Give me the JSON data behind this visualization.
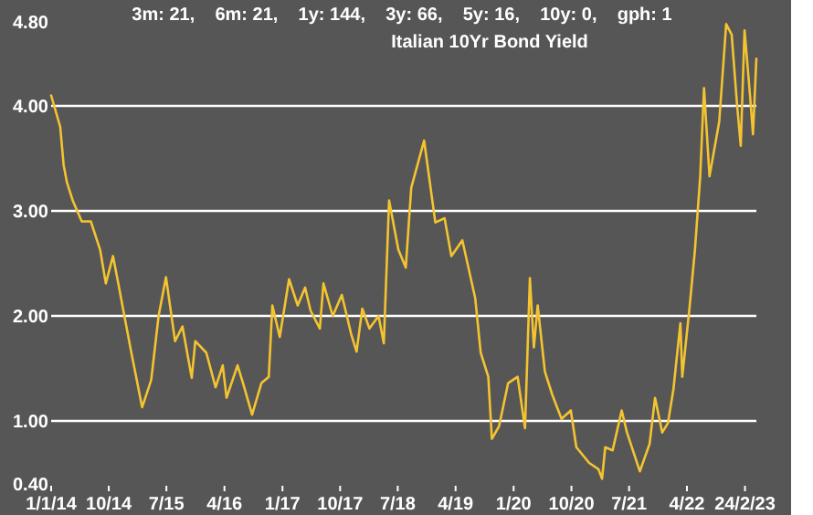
{
  "chart_data": {
    "type": "line",
    "title": "Italian 10Yr Bond Yield",
    "annotations": [
      "3m: 21,    6m: 21,    1y: 144,    3y: 66,    5y: 16,    10y: 0,    gph: 1"
    ],
    "x": [
      "2014-01-01",
      "2014-02-13",
      "2014-03-01",
      "2014-03-17",
      "2014-04-13",
      "2014-05-26",
      "2014-07-08",
      "2014-08-21",
      "2014-09-17",
      "2014-10-21",
      "2014-11-16",
      "2014-12-12",
      "2015-01-16",
      "2015-03-08",
      "2015-04-20",
      "2015-05-25",
      "2015-06-29",
      "2015-08-11",
      "2015-09-15",
      "2015-10-29",
      "2015-11-15",
      "2016-01-06",
      "2016-02-19",
      "2016-03-24",
      "2016-04-11",
      "2016-06-02",
      "2016-06-28",
      "2016-08-10",
      "2016-09-23",
      "2016-10-28",
      "2016-11-14",
      "2016-12-19",
      "2017-02-01",
      "2017-03-14",
      "2017-04-18",
      "2017-05-14",
      "2017-06-27",
      "2017-07-14",
      "2017-08-27",
      "2017-10-09",
      "2017-11-22",
      "2017-12-18",
      "2018-01-14",
      "2018-02-17",
      "2018-04-01",
      "2018-04-26",
      "2018-05-21",
      "2018-07-04",
      "2018-08-08",
      "2018-09-03",
      "2018-11-03",
      "2018-12-26",
      "2019-02-08",
      "2019-03-12",
      "2019-05-03",
      "2019-07-03",
      "2019-07-29",
      "2019-09-03",
      "2019-09-20",
      "2019-10-24",
      "2019-12-06",
      "2020-01-20",
      "2020-02-24",
      "2020-03-18",
      "2020-04-06",
      "2020-04-24",
      "2020-05-28",
      "2020-07-02",
      "2020-08-15",
      "2020-09-28",
      "2020-10-24",
      "2020-12-24",
      "2021-02-06",
      "2021-02-23",
      "2021-03-10",
      "2021-04-14",
      "2021-05-27",
      "2021-06-21",
      "2021-08-21",
      "2021-10-06",
      "2021-11-01",
      "2021-12-05",
      "2022-01-01",
      "2022-01-27",
      "2022-03-01",
      "2022-03-10",
      "2022-04-13",
      "2022-05-09",
      "2022-06-03",
      "2022-06-21",
      "2022-07-17",
      "2022-09-01",
      "2022-10-04",
      "2022-10-30",
      "2022-11-25",
      "2022-12-12",
      "2022-12-30",
      "2023-01-25",
      "2023-02-08",
      "2023-02-24"
    ],
    "series": [
      {
        "color": "#f4c430",
        "values": [
          4.1,
          3.8,
          3.44,
          3.27,
          3.1,
          2.9,
          2.9,
          2.63,
          2.31,
          2.57,
          2.3,
          2.02,
          1.65,
          1.13,
          1.39,
          2.0,
          2.37,
          1.76,
          1.9,
          1.41,
          1.76,
          1.65,
          1.32,
          1.53,
          1.22,
          1.53,
          1.36,
          1.06,
          1.36,
          1.42,
          2.1,
          1.8,
          2.35,
          2.1,
          2.27,
          2.05,
          1.88,
          2.31,
          2.0,
          2.2,
          1.83,
          1.66,
          2.07,
          1.88,
          2.0,
          1.74,
          3.1,
          2.63,
          2.46,
          3.22,
          3.67,
          2.89,
          2.93,
          2.57,
          2.72,
          2.17,
          1.65,
          1.42,
          0.83,
          0.95,
          1.36,
          1.42,
          0.93,
          2.36,
          1.7,
          2.1,
          1.47,
          1.25,
          1.02,
          1.1,
          0.75,
          0.6,
          0.54,
          0.45,
          0.75,
          0.72,
          1.1,
          0.89,
          0.52,
          0.78,
          1.22,
          0.89,
          0.98,
          1.3,
          1.93,
          1.42,
          2.07,
          2.63,
          3.33,
          4.17,
          3.33,
          3.85,
          4.78,
          4.68,
          4.0,
          3.62,
          4.72,
          4.1,
          3.73,
          4.45
        ]
      }
    ],
    "xlim": [
      "2014-01-01",
      "2023-02-24"
    ],
    "xticks": [
      {
        "value": "2014-01-01",
        "label": "1/1/14"
      },
      {
        "value": "2014-10-01",
        "label": "10/14"
      },
      {
        "value": "2015-07-01",
        "label": "7/15"
      },
      {
        "value": "2016-04-01",
        "label": "4/16"
      },
      {
        "value": "2017-01-01",
        "label": "1/17"
      },
      {
        "value": "2017-10-01",
        "label": "10/17"
      },
      {
        "value": "2018-07-01",
        "label": "7/18"
      },
      {
        "value": "2019-04-01",
        "label": "4/19"
      },
      {
        "value": "2020-01-01",
        "label": "1/20"
      },
      {
        "value": "2020-10-01",
        "label": "10/20"
      },
      {
        "value": "2021-07-01",
        "label": "7/21"
      },
      {
        "value": "2022-04-01",
        "label": "4/22"
      },
      {
        "value": "2023-01-01",
        "label": "24/2/23"
      }
    ],
    "ylim": [
      0.4,
      4.8
    ],
    "yticks": [
      {
        "value": 0.4,
        "label": "0.40"
      },
      {
        "value": 1,
        "label": "1.00"
      },
      {
        "value": 2,
        "label": "2.00"
      },
      {
        "value": 3,
        "label": "3.00"
      },
      {
        "value": 4,
        "label": "4.00"
      },
      {
        "value": 4.8,
        "label": "4.80"
      }
    ],
    "grid": "y",
    "line_style": "solid"
  }
}
